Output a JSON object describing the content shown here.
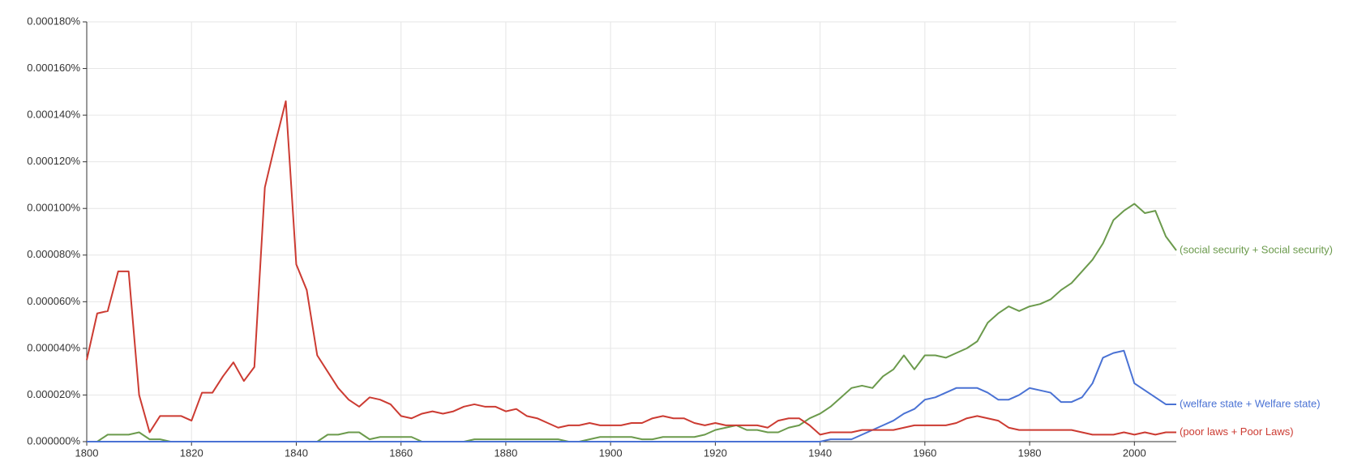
{
  "chart_data": {
    "type": "line",
    "xlim": [
      1800,
      2008
    ],
    "ylim": [
      0,
      0.00018
    ],
    "xticks": [
      1800,
      1820,
      1840,
      1860,
      1880,
      1900,
      1920,
      1940,
      1960,
      1980,
      2000
    ],
    "yticks": [
      {
        "value": 0,
        "label": "0.000000%"
      },
      {
        "value": 2e-05,
        "label": "0.000020%"
      },
      {
        "value": 4e-05,
        "label": "0.000040%"
      },
      {
        "value": 6e-05,
        "label": "0.000060%"
      },
      {
        "value": 8e-05,
        "label": "0.000080%"
      },
      {
        "value": 0.0001,
        "label": "0.000100%"
      },
      {
        "value": 0.00012,
        "label": "0.000120%"
      },
      {
        "value": 0.00014,
        "label": "0.000140%"
      },
      {
        "value": 0.00016,
        "label": "0.000160%"
      },
      {
        "value": 0.00018,
        "label": "0.000180%"
      }
    ],
    "grid": true,
    "x": [
      1800,
      1802,
      1804,
      1806,
      1808,
      1810,
      1812,
      1814,
      1816,
      1818,
      1820,
      1822,
      1824,
      1826,
      1828,
      1830,
      1832,
      1834,
      1836,
      1838,
      1840,
      1842,
      1844,
      1846,
      1848,
      1850,
      1852,
      1854,
      1856,
      1858,
      1860,
      1862,
      1864,
      1866,
      1868,
      1870,
      1872,
      1874,
      1876,
      1878,
      1880,
      1882,
      1884,
      1886,
      1888,
      1890,
      1892,
      1894,
      1896,
      1898,
      1900,
      1902,
      1904,
      1906,
      1908,
      1910,
      1912,
      1914,
      1916,
      1918,
      1920,
      1922,
      1924,
      1926,
      1928,
      1930,
      1932,
      1934,
      1936,
      1938,
      1940,
      1942,
      1944,
      1946,
      1948,
      1950,
      1952,
      1954,
      1956,
      1958,
      1960,
      1962,
      1964,
      1966,
      1968,
      1970,
      1972,
      1974,
      1976,
      1978,
      1980,
      1982,
      1984,
      1986,
      1988,
      1990,
      1992,
      1994,
      1996,
      1998,
      2000,
      2002,
      2004,
      2006,
      2008
    ],
    "series": [
      {
        "name": "(social security + Social security)",
        "color": "#6b9a4c",
        "values": [
          0,
          0,
          3e-06,
          3e-06,
          3e-06,
          4e-06,
          1e-06,
          1e-06,
          0,
          0,
          0,
          0,
          0,
          0,
          0,
          0,
          0,
          0,
          0,
          0,
          0,
          0,
          0,
          3e-06,
          3e-06,
          4e-06,
          4e-06,
          1e-06,
          2e-06,
          2e-06,
          2e-06,
          2e-06,
          0,
          0,
          0,
          0,
          0,
          1e-06,
          1e-06,
          1e-06,
          1e-06,
          1e-06,
          1e-06,
          1e-06,
          1e-06,
          1e-06,
          0,
          0,
          1e-06,
          2e-06,
          2e-06,
          2e-06,
          2e-06,
          1e-06,
          1e-06,
          2e-06,
          2e-06,
          2e-06,
          2e-06,
          3e-06,
          5e-06,
          6e-06,
          7e-06,
          5e-06,
          5e-06,
          4e-06,
          4e-06,
          6e-06,
          7e-06,
          1e-05,
          1.2e-05,
          1.5e-05,
          1.9e-05,
          2.3e-05,
          2.4e-05,
          2.3e-05,
          2.8e-05,
          3.1e-05,
          3.7e-05,
          3.1e-05,
          3.7e-05,
          3.7e-05,
          3.6e-05,
          3.8e-05,
          4e-05,
          4.3e-05,
          5.1e-05,
          5.5e-05,
          5.8e-05,
          5.6e-05,
          5.8e-05,
          5.9e-05,
          6.1e-05,
          6.5e-05,
          6.8e-05,
          7.3e-05,
          7.8e-05,
          8.5e-05,
          9.5e-05,
          9.9e-05,
          0.000102,
          9.8e-05,
          9.9e-05,
          8.8e-05,
          8.2e-05
        ]
      },
      {
        "name": "(welfare state + Welfare state)",
        "color": "#4a72d4",
        "values": [
          0,
          0,
          0,
          0,
          0,
          0,
          0,
          0,
          0,
          0,
          0,
          0,
          0,
          0,
          0,
          0,
          0,
          0,
          0,
          0,
          0,
          0,
          0,
          0,
          0,
          0,
          0,
          0,
          0,
          0,
          0,
          0,
          0,
          0,
          0,
          0,
          0,
          0,
          0,
          0,
          0,
          0,
          0,
          0,
          0,
          0,
          0,
          0,
          0,
          0,
          0,
          0,
          0,
          0,
          0,
          0,
          0,
          0,
          0,
          0,
          0,
          0,
          0,
          0,
          0,
          0,
          0,
          0,
          0,
          0,
          0,
          1e-06,
          1e-06,
          1e-06,
          3e-06,
          5e-06,
          7e-06,
          9e-06,
          1.2e-05,
          1.4e-05,
          1.8e-05,
          1.9e-05,
          2.1e-05,
          2.3e-05,
          2.3e-05,
          2.3e-05,
          2.1e-05,
          1.8e-05,
          1.8e-05,
          2e-05,
          2.3e-05,
          2.2e-05,
          2.1e-05,
          1.7e-05,
          1.7e-05,
          1.9e-05,
          2.5e-05,
          3.6e-05,
          3.8e-05,
          3.9e-05,
          2.5e-05,
          2.2e-05,
          1.9e-05,
          1.6e-05,
          1.6e-05
        ]
      },
      {
        "name": "(poor laws + Poor Laws)",
        "color": "#cc3b32",
        "values": [
          3.5e-05,
          5.5e-05,
          5.6e-05,
          7.3e-05,
          7.3e-05,
          2e-05,
          4e-06,
          1.1e-05,
          1.1e-05,
          1.1e-05,
          9e-06,
          2.1e-05,
          2.1e-05,
          2.8e-05,
          3.4e-05,
          2.6e-05,
          3.2e-05,
          0.000109,
          0.000128,
          0.000146,
          7.6e-05,
          6.5e-05,
          3.7e-05,
          3e-05,
          2.3e-05,
          1.8e-05,
          1.5e-05,
          1.9e-05,
          1.8e-05,
          1.6e-05,
          1.1e-05,
          1e-05,
          1.2e-05,
          1.3e-05,
          1.2e-05,
          1.3e-05,
          1.5e-05,
          1.6e-05,
          1.5e-05,
          1.5e-05,
          1.3e-05,
          1.4e-05,
          1.1e-05,
          1e-05,
          8e-06,
          6e-06,
          7e-06,
          7e-06,
          8e-06,
          7e-06,
          7e-06,
          7e-06,
          8e-06,
          8e-06,
          1e-05,
          1.1e-05,
          1e-05,
          1e-05,
          8e-06,
          7e-06,
          8e-06,
          7e-06,
          7e-06,
          7e-06,
          7e-06,
          6e-06,
          9e-06,
          1e-05,
          1e-05,
          7e-06,
          3e-06,
          4e-06,
          4e-06,
          4e-06,
          5e-06,
          5e-06,
          5e-06,
          5e-06,
          6e-06,
          7e-06,
          7e-06,
          7e-06,
          7e-06,
          8e-06,
          1e-05,
          1.1e-05,
          1e-05,
          9e-06,
          6e-06,
          5e-06,
          5e-06,
          5e-06,
          5e-06,
          5e-06,
          5e-06,
          4e-06,
          3e-06,
          3e-06,
          3e-06,
          4e-06,
          3e-06,
          4e-06,
          3e-06,
          4e-06,
          4e-06
        ]
      }
    ]
  }
}
